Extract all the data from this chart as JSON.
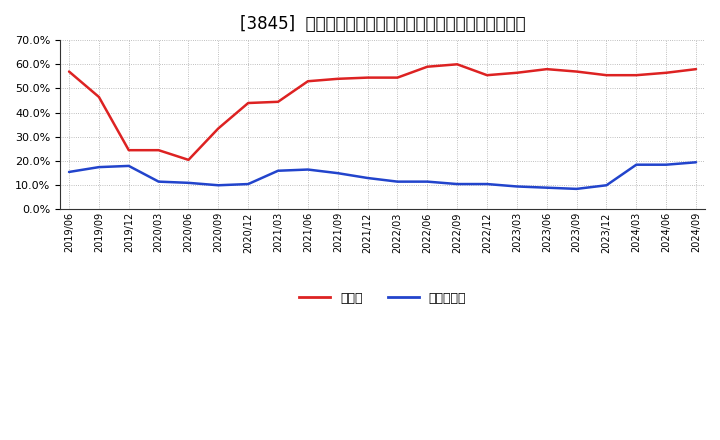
{
  "title": "[3845]  現預金、有利子負債の総資産に対する比率の推移",
  "x_labels": [
    "2019/06",
    "2019/09",
    "2019/12",
    "2020/03",
    "2020/06",
    "2020/09",
    "2020/12",
    "2021/03",
    "2021/06",
    "2021/09",
    "2021/12",
    "2022/03",
    "2022/06",
    "2022/09",
    "2022/12",
    "2023/03",
    "2023/06",
    "2023/09",
    "2023/12",
    "2024/03",
    "2024/06",
    "2024/09"
  ],
  "cash": [
    0.57,
    0.465,
    0.245,
    0.245,
    0.205,
    0.335,
    0.44,
    0.445,
    0.53,
    0.54,
    0.545,
    0.545,
    0.59,
    0.6,
    0.555,
    0.565,
    0.58,
    0.57,
    0.555,
    0.555,
    0.565,
    0.58
  ],
  "debt": [
    0.155,
    0.175,
    0.18,
    0.115,
    0.11,
    0.1,
    0.105,
    0.16,
    0.165,
    0.15,
    0.13,
    0.115,
    0.115,
    0.105,
    0.105,
    0.095,
    0.09,
    0.085,
    0.1,
    0.185,
    0.185,
    0.195
  ],
  "cash_color": "#dd2222",
  "debt_color": "#2244cc",
  "background_color": "#ffffff",
  "grid_color": "#aaaaaa",
  "ylim": [
    0.0,
    0.7
  ],
  "yticks": [
    0.0,
    0.1,
    0.2,
    0.3,
    0.4,
    0.5,
    0.6,
    0.7
  ],
  "legend_cash": "現預金",
  "legend_debt": "有利子負債",
  "title_fontsize": 12
}
